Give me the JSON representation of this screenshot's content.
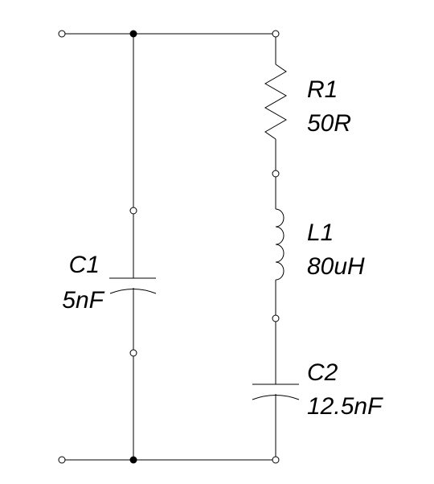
{
  "components": {
    "r1": {
      "designator": "R1",
      "value": "50R"
    },
    "l1": {
      "designator": "L1",
      "value": "80uH"
    },
    "c1": {
      "designator": "C1",
      "value": "5nF"
    },
    "c2": {
      "designator": "C2",
      "value": "12.5nF"
    }
  },
  "colors": {
    "wire": "#000000",
    "background": "#ffffff"
  }
}
